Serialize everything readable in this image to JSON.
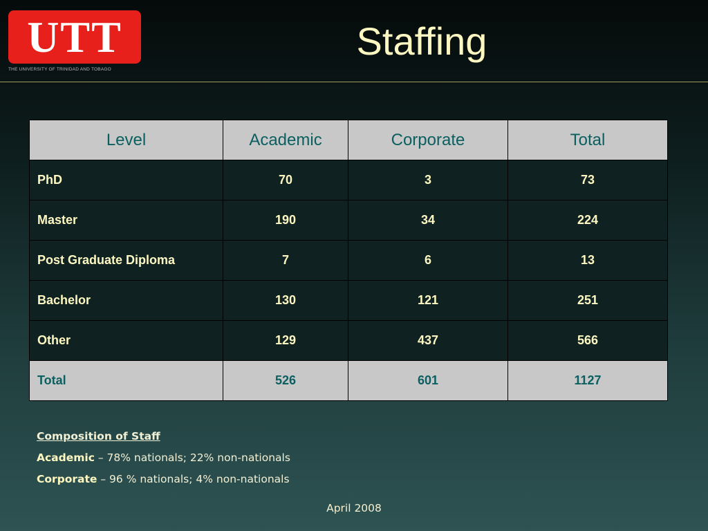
{
  "logo": {
    "text": "UTT",
    "caption": "THE UNIVERSITY OF TRINIDAD AND TOBAGO"
  },
  "title": "Staffing",
  "table": {
    "headers": [
      "Level",
      "Academic",
      "Corporate",
      "Total"
    ],
    "rows": [
      {
        "level": "PhD",
        "academic": "70",
        "corporate": "3",
        "total": "73"
      },
      {
        "level": "Master",
        "academic": "190",
        "corporate": "34",
        "total": "224"
      },
      {
        "level": "Post Graduate Diploma",
        "academic": "7",
        "corporate": "6",
        "total": "13"
      },
      {
        "level": "Bachelor",
        "academic": "130",
        "corporate": "121",
        "total": "251"
      },
      {
        "level": "Other",
        "academic": "129",
        "corporate": "437",
        "total": "566"
      }
    ],
    "total_row": {
      "level": "Total",
      "academic": "526",
      "corporate": "601",
      "total": "1127"
    }
  },
  "composition": {
    "heading": "Composition of Staff",
    "academic_label": "Academic",
    "academic_text": " – 78% nationals; 22% non-nationals",
    "corporate_label": "Corporate",
    "corporate_text": " – 96 % nationals; 4% non-nationals"
  },
  "footer": "April 2008",
  "colors": {
    "logo_red": "#e8201c",
    "title_yellow": "#fdf8c2",
    "header_teal": "#0b5f60",
    "header_gray": "#c8c8c8"
  }
}
